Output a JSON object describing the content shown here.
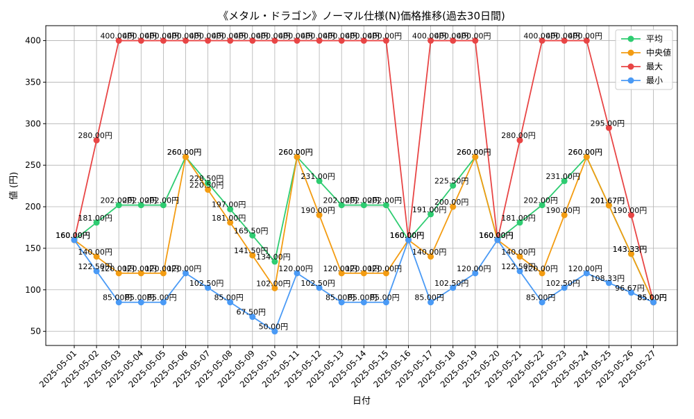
{
  "chart_data": {
    "type": "line",
    "title": "《メタル・ドラゴン》ノーマル仕様(N)価格推移(過去30日間)",
    "xlabel": "日付",
    "ylabel": "値 (円)",
    "ylim": [
      33,
      418
    ],
    "yticks": [
      50,
      100,
      150,
      200,
      250,
      300,
      350,
      400
    ],
    "grid": true,
    "legend_position": "top-right",
    "value_suffix": "円",
    "categories": [
      "2025-05-01",
      "2025-05-02",
      "2025-05-03",
      "2025-05-04",
      "2025-05-05",
      "2025-05-06",
      "2025-05-07",
      "2025-05-08",
      "2025-05-09",
      "2025-05-10",
      "2025-05-11",
      "2025-05-12",
      "2025-05-13",
      "2025-05-14",
      "2025-05-15",
      "2025-05-16",
      "2025-05-17",
      "2025-05-18",
      "2025-05-19",
      "2025-05-20",
      "2025-05-21",
      "2025-05-22",
      "2025-05-23",
      "2025-05-24",
      "2025-05-25",
      "2025-05-26",
      "2025-05-27"
    ],
    "series": [
      {
        "name": "平均",
        "color": "#2ecc71",
        "values": [
          160,
          181,
          202,
          202,
          202,
          260,
          228.5,
          197,
          165.5,
          134,
          260,
          231,
          202,
          202,
          202,
          160,
          191,
          225.5,
          260,
          160,
          181,
          202,
          231,
          260,
          201.67,
          143.33,
          85
        ]
      },
      {
        "name": "中央値",
        "color": "#f39c12",
        "values": [
          160,
          140,
          120,
          120,
          120,
          260,
          220.5,
          181,
          141.5,
          102,
          260,
          190,
          120,
          120,
          120,
          160,
          140,
          200,
          260,
          160,
          140,
          120,
          190,
          260,
          201.67,
          143.33,
          85
        ]
      },
      {
        "name": "最大",
        "color": "#e84545",
        "values": [
          160,
          280,
          400,
          400,
          400,
          400,
          400,
          400,
          400,
          400,
          400,
          400,
          400,
          400,
          400,
          160,
          400,
          400,
          400,
          160,
          280,
          400,
          400,
          400,
          295,
          190,
          85
        ]
      },
      {
        "name": "最小",
        "color": "#4a9af5",
        "values": [
          160,
          122.5,
          85,
          85,
          85,
          120,
          102.5,
          85,
          67.5,
          50,
          120,
          102.5,
          85,
          85,
          85,
          160,
          85,
          102.5,
          120,
          160,
          122.5,
          85,
          102.5,
          120,
          108.33,
          96.67,
          85
        ]
      }
    ]
  }
}
